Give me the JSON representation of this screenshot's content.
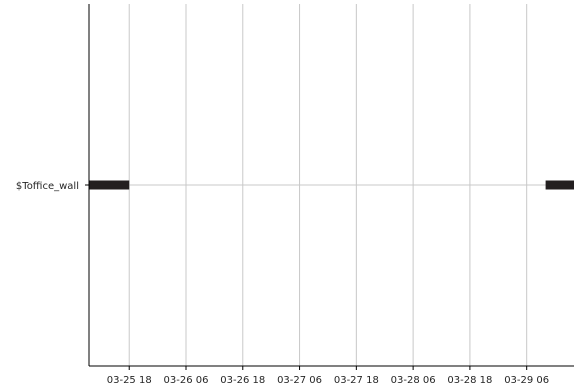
{
  "chart_data": {
    "type": "bar",
    "orientation": "horizontal-timeline",
    "categories": [
      "$Toffice_wall"
    ],
    "series": [
      {
        "category": "$Toffice_wall",
        "intervals": [
          {
            "start": "2020-03-25 09:00",
            "end": "2020-03-25 18:00"
          },
          {
            "start": "2020-03-29 10:00",
            "end": "2020-03-29 16:00"
          }
        ]
      }
    ],
    "x": {
      "tick_labels": [
        "03-25 18",
        "03-26 06",
        "03-26 18",
        "03-27 06",
        "03-27 18",
        "03-28 06",
        "03-28 18",
        "03-29 06"
      ],
      "range": [
        "2020-03-25 09:30",
        "2020-03-29 16:00"
      ]
    },
    "grid": true,
    "colors": {
      "bar": "#231f20",
      "grid": "#c8c8c8",
      "axis": "#000000"
    }
  }
}
